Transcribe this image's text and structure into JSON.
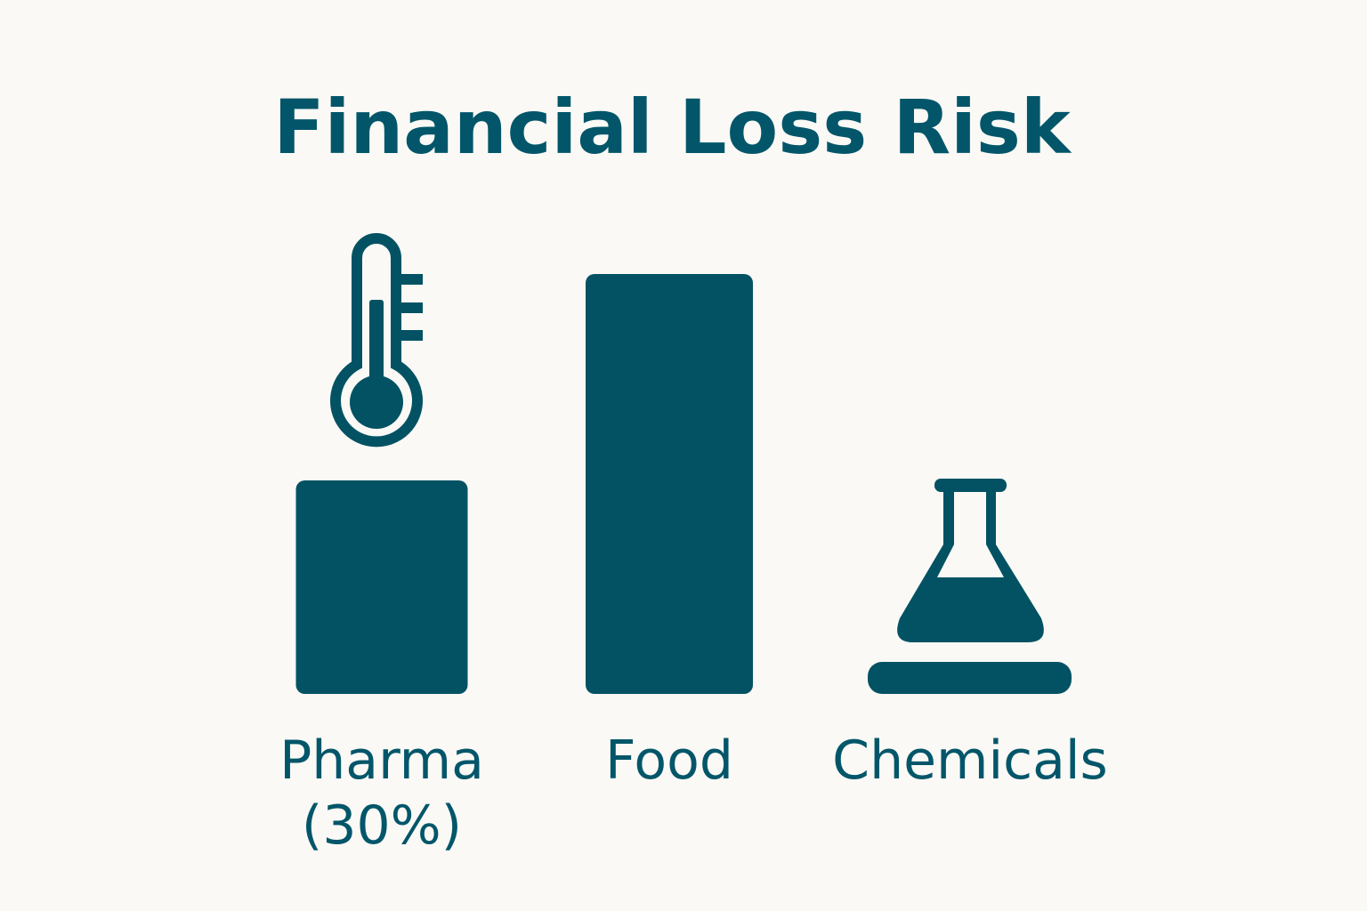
{
  "chart_data": {
    "type": "bar",
    "title": "Financial Loss Risk",
    "categories": [
      "Pharma",
      "Food",
      "Chemicals"
    ],
    "data_labels": [
      "(30%)",
      "",
      ""
    ],
    "values": [
      30,
      59,
      null
    ],
    "unit": "%",
    "icons": [
      "thermometer-icon",
      null,
      "flask-icon"
    ],
    "grid": false,
    "colors": {
      "bar": "#035264",
      "text": "#03566a",
      "background": "#faf9f5"
    }
  }
}
